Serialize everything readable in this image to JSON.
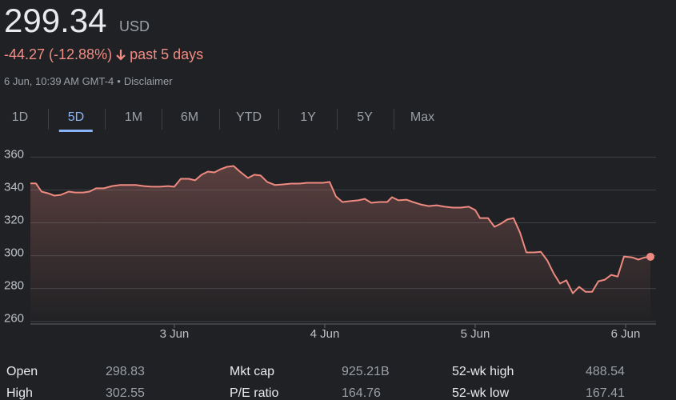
{
  "header": {
    "price": "299.34",
    "currency": "USD",
    "change": "-44.27 (-12.88%)",
    "period": "past 5 days",
    "timestamp": "6 Jun, 10:39 AM GMT-4",
    "separator": "•",
    "disclaimer": "Disclaimer"
  },
  "tabs": {
    "items": [
      "1D",
      "5D",
      "1M",
      "6M",
      "YTD",
      "1Y",
      "5Y",
      "Max"
    ],
    "selected": 1
  },
  "chart_data": {
    "type": "line",
    "x": [
      -0.957,
      -0.92,
      -0.883,
      -0.84,
      -0.798,
      -0.755,
      -0.702,
      -0.66,
      -0.606,
      -0.564,
      -0.521,
      -0.468,
      -0.415,
      -0.362,
      -0.309,
      -0.255,
      -0.202,
      -0.149,
      -0.096,
      -0.043,
      0,
      0.043,
      0.096,
      0.138,
      0.181,
      0.223,
      0.266,
      0.309,
      0.351,
      0.394,
      0.436,
      0.489,
      0.532,
      0.574,
      0.617,
      0.67,
      0.723,
      0.777,
      0.83,
      0.883,
      0.936,
      0.989,
      1.032,
      1.074,
      1.117,
      1.17,
      1.223,
      1.266,
      1.309,
      1.362,
      1.415,
      1.447,
      1.489,
      1.543,
      1.585,
      1.638,
      1.691,
      1.745,
      1.798,
      1.851,
      1.904,
      1.957,
      2.0,
      2.032,
      2.085,
      2.128,
      2.17,
      2.213,
      2.255,
      2.298,
      2.34,
      2.394,
      2.436,
      2.479,
      2.521,
      2.564,
      2.606,
      2.649,
      2.691,
      2.734,
      2.777,
      2.819,
      2.862,
      2.904,
      2.947,
      2.989,
      3.043,
      3.085,
      3.128,
      3.165
    ],
    "series": [
      {
        "color": "#ee8a80",
        "values": [
          344,
          344,
          339,
          338,
          336.6,
          337,
          339,
          338.5,
          338.5,
          339,
          341,
          341,
          342.4,
          343,
          343,
          343,
          342.4,
          342,
          342,
          342.4,
          342,
          346.8,
          346.8,
          345.9,
          349.3,
          351.2,
          350.7,
          352.7,
          354.1,
          354.6,
          351.2,
          347.3,
          349.3,
          348.8,
          344.9,
          343,
          343.4,
          343.9,
          343.9,
          344.4,
          344.4,
          344.4,
          344.9,
          336.1,
          332.7,
          333.2,
          333.7,
          334.6,
          332.2,
          332.7,
          332.7,
          335.6,
          333.7,
          334.1,
          332.7,
          331.2,
          330.2,
          330.7,
          329.8,
          329.3,
          329.3,
          329.8,
          327.8,
          322.9,
          322.9,
          317.6,
          319.5,
          322,
          322.9,
          314.1,
          302,
          302,
          302.4,
          297.1,
          289.3,
          283,
          285,
          277.1,
          281,
          278,
          278,
          284.4,
          285.4,
          288.3,
          287.3,
          299.5,
          299,
          297.6,
          299,
          299.34
        ]
      }
    ],
    "xlim": [
      -0.957,
      3.202
    ],
    "xticks": [
      {
        "value": 0,
        "label": "3 Jun"
      },
      {
        "value": 1,
        "label": "4 Jun"
      },
      {
        "value": 2,
        "label": "5 Jun"
      },
      {
        "value": 3,
        "label": "6 Jun"
      }
    ],
    "ylim": [
      255,
      368
    ],
    "yticks": [
      260,
      280,
      300,
      320,
      340,
      360
    ],
    "grid": true
  },
  "stats": {
    "rows": [
      [
        "Open",
        "298.83",
        "Mkt cap",
        "925.21B",
        "52-wk high",
        "488.54"
      ],
      [
        "High",
        "302.55",
        "P/E ratio",
        "164.76",
        "52-wk low",
        "167.41"
      ]
    ]
  }
}
